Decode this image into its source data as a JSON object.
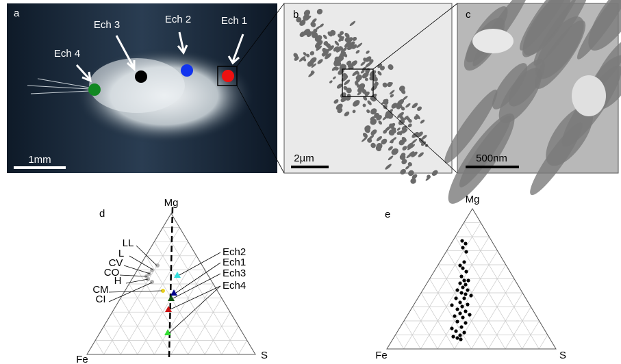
{
  "panels": {
    "a": {
      "label": "a",
      "samples": [
        "Ech 1",
        "Ech 2",
        "Ech 3",
        "Ech 4"
      ],
      "scale_bar": "1mm"
    },
    "b": {
      "label": "b",
      "scale_bar": "2µm"
    },
    "c": {
      "label": "c",
      "scale_bar": "500nm"
    },
    "d": {
      "label": "d",
      "vertices": [
        "Mg",
        "Fe",
        "S"
      ],
      "meteorite_labels": [
        "LL",
        "L",
        "CV",
        "CO",
        "H",
        "CM",
        "CI"
      ],
      "sample_labels": [
        "Ech2",
        "Ech1",
        "Ech3",
        "Ech4"
      ]
    },
    "e": {
      "label": "e",
      "vertices": [
        "Mg",
        "Fe",
        "S"
      ]
    }
  }
}
